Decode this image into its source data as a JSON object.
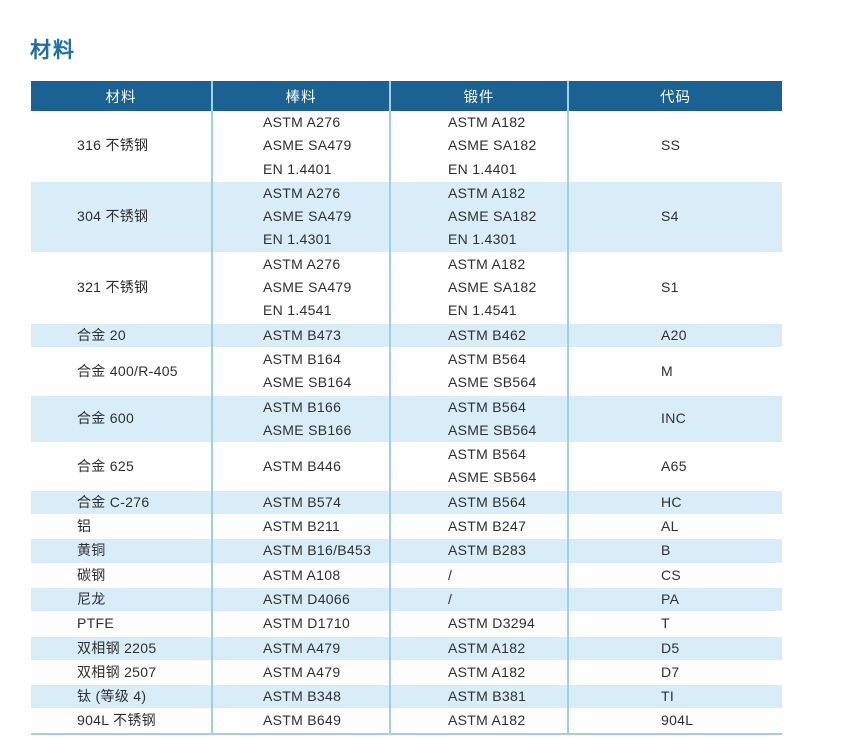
{
  "page": {
    "title": "材料"
  },
  "table": {
    "headers": [
      "材料",
      "棒料",
      "锻件",
      "代码"
    ],
    "rows": [
      {
        "material": "316 不锈钢",
        "bar": [
          "ASTM A276",
          "ASME SA479",
          "EN 1.4401"
        ],
        "forging": [
          "ASTM A182",
          "ASME SA182",
          "EN 1.4401"
        ],
        "code": "SS"
      },
      {
        "material": "304 不锈钢",
        "bar": [
          "ASTM A276",
          "ASME SA479",
          "EN 1.4301"
        ],
        "forging": [
          "ASTM A182",
          "ASME SA182",
          "EN 1.4301"
        ],
        "code": "S4"
      },
      {
        "material": "321 不锈钢",
        "bar": [
          "ASTM A276",
          "ASME SA479",
          "EN 1.4541"
        ],
        "forging": [
          "ASTM A182",
          "ASME SA182",
          "EN 1.4541"
        ],
        "code": "S1"
      },
      {
        "material": "合金 20",
        "bar": [
          "ASTM B473"
        ],
        "forging": [
          "ASTM B462"
        ],
        "code": "A20"
      },
      {
        "material": "合金 400/R-405",
        "bar": [
          "ASTM B164",
          "ASME SB164"
        ],
        "forging": [
          "ASTM B564",
          "ASME SB564"
        ],
        "code": "M"
      },
      {
        "material": "合金 600",
        "bar": [
          "ASTM B166",
          "ASME SB166"
        ],
        "forging": [
          "ASTM B564",
          "ASME SB564"
        ],
        "code": "INC"
      },
      {
        "material": "合金 625",
        "bar": [
          "ASTM B446"
        ],
        "forging": [
          "ASTM B564",
          "ASME SB564"
        ],
        "code": "A65"
      },
      {
        "material": "合金 C-276",
        "bar": [
          "ASTM B574"
        ],
        "forging": [
          "ASTM B564"
        ],
        "code": "HC"
      },
      {
        "material": "铝",
        "bar": [
          "ASTM B211"
        ],
        "forging": [
          "ASTM B247"
        ],
        "code": "AL"
      },
      {
        "material": "黄铜",
        "bar": [
          "ASTM B16/B453"
        ],
        "forging": [
          "ASTM B283"
        ],
        "code": "B"
      },
      {
        "material": "碳钢",
        "bar": [
          "ASTM A108"
        ],
        "forging": [
          "/"
        ],
        "code": "CS"
      },
      {
        "material": "尼龙",
        "bar": [
          "ASTM D4066"
        ],
        "forging": [
          "/"
        ],
        "code": "PA"
      },
      {
        "material": "PTFE",
        "bar": [
          "ASTM D1710"
        ],
        "forging": [
          "ASTM D3294"
        ],
        "code": "T"
      },
      {
        "material": "双相钢 2205",
        "bar": [
          "ASTM A479"
        ],
        "forging": [
          "ASTM A182"
        ],
        "code": "D5"
      },
      {
        "material": "双相钢 2507",
        "bar": [
          "ASTM A479"
        ],
        "forging": [
          "ASTM A182"
        ],
        "code": "D7"
      },
      {
        "material": "钛 (等级 4)",
        "bar": [
          "ASTM B348"
        ],
        "forging": [
          "ASTM B381"
        ],
        "code": "TI"
      },
      {
        "material": "904L 不锈钢",
        "bar": [
          "ASTM B649"
        ],
        "forging": [
          "ASTM A182"
        ],
        "code": "904L"
      }
    ]
  },
  "colors": {
    "header_bg": "#1b6292",
    "header_text": "#ffffff",
    "row_alt_bg": "#d9edf9",
    "divider": "#9fd0e8",
    "title_color": "#1d6fa5",
    "body_text": "#2f2f2f"
  }
}
